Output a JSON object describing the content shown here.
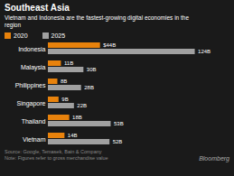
{
  "chart_data": {
    "type": "bar",
    "orientation": "horizontal",
    "title": "Southeast Asia",
    "subtitle": "Vietnam and Indonesia are the fastest-growing digital economies in the\nregion",
    "categories": [
      "Vietnam",
      "Thailand",
      "Singapore",
      "Philippines",
      "Malaysia",
      "Indonesia"
    ],
    "series": [
      {
        "name": "2020",
        "color": "#E8820C",
        "values": [
          14,
          18,
          9,
          8,
          11,
          44
        ],
        "value_labels": [
          "14B",
          "18B",
          "9B",
          "8B",
          "11B",
          "$44B"
        ]
      },
      {
        "name": "2025",
        "color": "#A0A0A0",
        "values": [
          52,
          53,
          22,
          28,
          30,
          124
        ],
        "value_labels": [
          "52B",
          "53B",
          "22B",
          "28B",
          "30B",
          "124B"
        ]
      }
    ],
    "xlim": [
      0,
      135
    ],
    "tick_labels": "y",
    "data_labels": true,
    "grid": false,
    "legend": "top-left",
    "annotations": [
      "Source: Google, Temasek, Bain & Company\nNote: Figures refer to gross merchandise value",
      "Bloomberg"
    ]
  }
}
